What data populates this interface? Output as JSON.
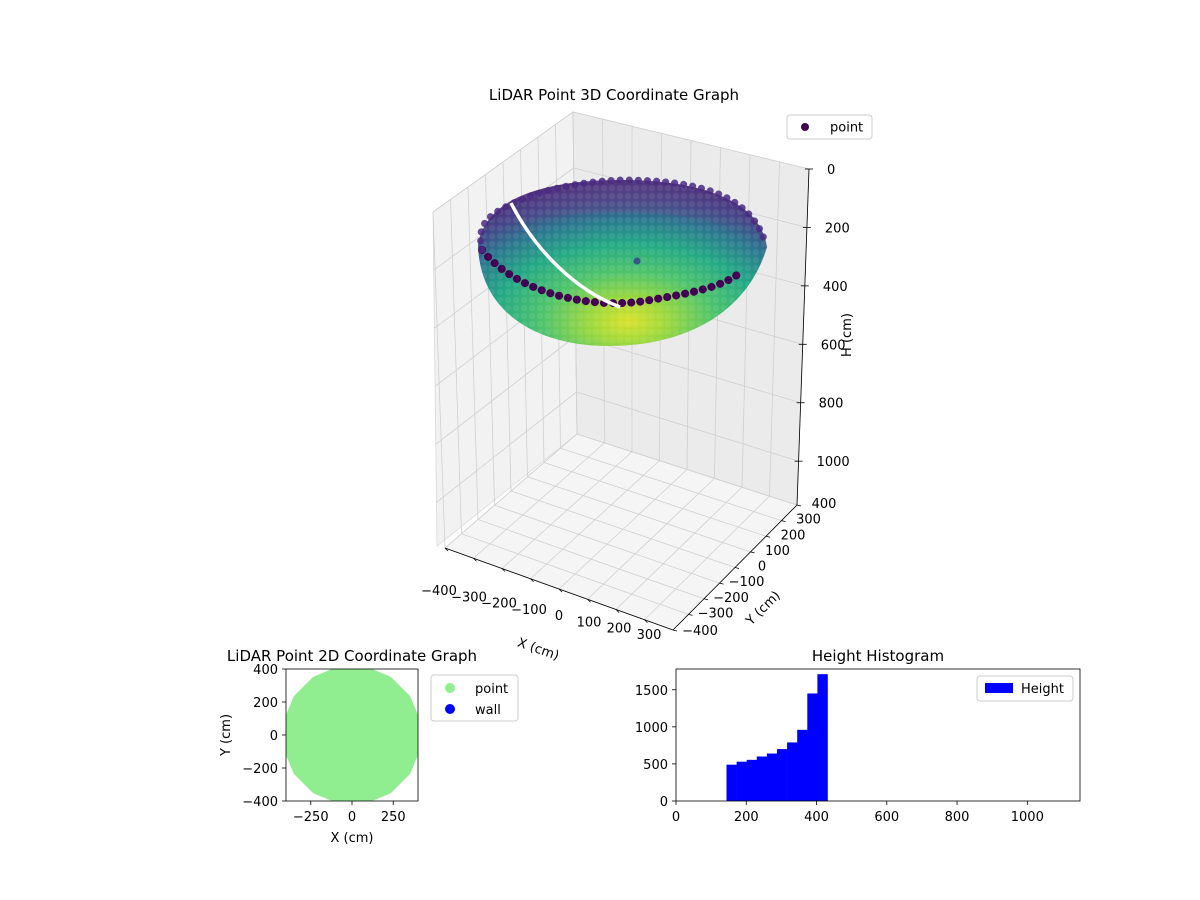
{
  "chart_data": [
    {
      "type": "scatter",
      "projection": "3d",
      "title": "LiDAR Point 3D Coordinate Graph",
      "xlabel": "X (cm)",
      "ylabel": "Y (cm)",
      "zlabel": "H (cm)",
      "xlim": [
        -400,
        400
      ],
      "ylim": [
        -400,
        400
      ],
      "zlim": [
        1150,
        0
      ],
      "x_ticks": [
        "−400",
        "−300",
        "−200",
        "−100",
        "0",
        "100",
        "200",
        "300"
      ],
      "y_ticks": [
        "−400",
        "−300",
        "−200",
        "−100",
        "0",
        "100",
        "200",
        "300",
        "400"
      ],
      "z_ticks": [
        "0",
        "200",
        "400",
        "600",
        "800",
        "1000"
      ],
      "legend": {
        "position": "upper right",
        "entries": [
          {
            "name": "point",
            "color": "#440154"
          }
        ]
      },
      "series": [
        {
          "name": "point",
          "shape": "hemispherical bowl",
          "radius": 400,
          "height_range": [
            0,
            450
          ],
          "colormap": "viridis",
          "colormap_colors": [
            "#440154",
            "#3b528b",
            "#21918c",
            "#5ec962",
            "#fde725"
          ]
        }
      ],
      "grid": true
    },
    {
      "type": "scatter",
      "title": "LiDAR Point 2D Coordinate Graph",
      "xlabel": "X (cm)",
      "ylabel": "Y (cm)",
      "xlim": [
        -400,
        400
      ],
      "ylim": [
        -400,
        400
      ],
      "x_ticks": [
        {
          "v": -250,
          "label": "−250"
        },
        {
          "v": 0,
          "label": "0"
        },
        {
          "v": 250,
          "label": "250"
        }
      ],
      "y_ticks": [
        {
          "v": 400,
          "label": "400"
        },
        {
          "v": 200,
          "label": "200"
        },
        {
          "v": 0,
          "label": "0"
        },
        {
          "v": -200,
          "label": "−200"
        },
        {
          "v": -400,
          "label": "−400"
        }
      ],
      "legend": {
        "position": "outside right",
        "entries": [
          {
            "name": "point",
            "color": "#90ee90"
          },
          {
            "name": "wall",
            "color": "#0000ff"
          }
        ]
      },
      "series": [
        {
          "name": "point",
          "shape": "filled disk",
          "radius": 400,
          "color": "#90ee90"
        },
        {
          "name": "wall",
          "color": "#0000ff",
          "points": []
        }
      ]
    },
    {
      "type": "bar",
      "subtype": "histogram",
      "title": "Height Histogram",
      "xlim": [
        0,
        1150
      ],
      "ylim": [
        0,
        1780
      ],
      "x_ticks": [
        0,
        200,
        400,
        600,
        800,
        1000
      ],
      "y_ticks": [
        0,
        500,
        1000,
        1500
      ],
      "legend": {
        "position": "upper right",
        "entries": [
          {
            "name": "Height",
            "color": "#0000ff"
          }
        ]
      },
      "bin_width": 28.75,
      "bins": [
        {
          "x0": 143.75,
          "count": 490
        },
        {
          "x0": 172.5,
          "count": 530
        },
        {
          "x0": 201.25,
          "count": 555
        },
        {
          "x0": 230,
          "count": 600
        },
        {
          "x0": 258.75,
          "count": 640
        },
        {
          "x0": 287.5,
          "count": 700
        },
        {
          "x0": 316.25,
          "count": 790
        },
        {
          "x0": 345,
          "count": 960
        },
        {
          "x0": 373.75,
          "count": 1450
        },
        {
          "x0": 402.5,
          "count": 1710
        }
      ],
      "color": "#0000ff"
    }
  ]
}
